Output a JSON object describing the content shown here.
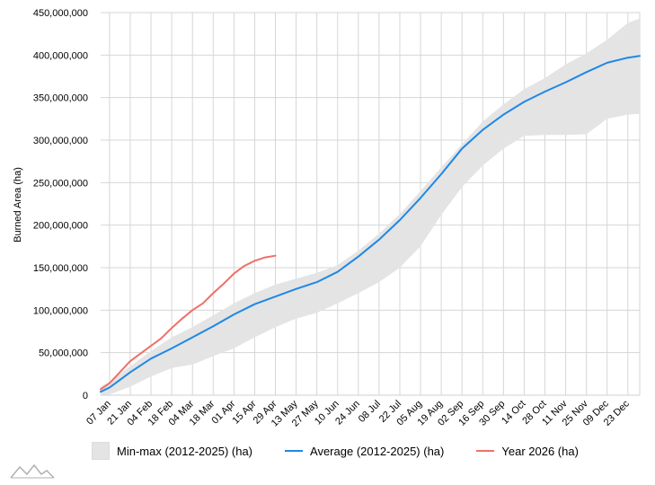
{
  "chart_data": {
    "type": "line",
    "ylabel": "Burned Area (ha)",
    "ylim": [
      0,
      450000000
    ],
    "y_ticks": [
      0,
      50000000,
      100000000,
      150000000,
      200000000,
      250000000,
      300000000,
      350000000,
      400000000,
      450000000
    ],
    "y_tick_labels": [
      "0",
      "50,000,000",
      "100,000,000",
      "150,000,000",
      "200,000,000",
      "250,000,000",
      "300,000,000",
      "350,000,000",
      "400,000,000",
      "450,000,000"
    ],
    "x_tick_labels": [
      "07 Jan",
      "21 Jan",
      "04 Feb",
      "18 Feb",
      "04 Mar",
      "18 Mar",
      "01 Apr",
      "15 Apr",
      "29 Apr",
      "13 May",
      "27 May",
      "10 Jun",
      "24 Jun",
      "08 Jul",
      "22 Jul",
      "05 Aug",
      "19 Aug",
      "02 Sep",
      "16 Sep",
      "30 Sep",
      "14 Oct",
      "28 Oct",
      "11 Nov",
      "25 Nov",
      "09 Dec",
      "23 Dec"
    ],
    "x_start": "01 Jan",
    "x_end": "31 Dec",
    "grid": true,
    "legend_position": "bottom",
    "series": [
      {
        "name": "Min-max (2012-2025) (ha)",
        "kind": "band",
        "color": "#e4e4e4",
        "x": [
          "01 Jan",
          "07 Jan",
          "21 Jan",
          "04 Feb",
          "18 Feb",
          "04 Mar",
          "18 Mar",
          "01 Apr",
          "15 Apr",
          "29 Apr",
          "13 May",
          "27 May",
          "10 Jun",
          "24 Jun",
          "08 Jul",
          "22 Jul",
          "05 Aug",
          "19 Aug",
          "02 Sep",
          "16 Sep",
          "30 Sep",
          "14 Oct",
          "28 Oct",
          "11 Nov",
          "25 Nov",
          "09 Dec",
          "23 Dec",
          "31 Dec"
        ],
        "low": [
          0,
          1000000,
          10000000,
          22000000,
          32000000,
          36000000,
          46000000,
          55000000,
          68000000,
          80000000,
          90000000,
          97000000,
          108000000,
          120000000,
          133000000,
          150000000,
          175000000,
          212000000,
          245000000,
          270000000,
          290000000,
          305000000,
          306000000,
          306000000,
          307000000,
          325000000,
          330000000,
          331000000
        ],
        "high": [
          10000000,
          16000000,
          34000000,
          52000000,
          68000000,
          80000000,
          94000000,
          108000000,
          120000000,
          130000000,
          137000000,
          144000000,
          153000000,
          170000000,
          190000000,
          213000000,
          240000000,
          268000000,
          295000000,
          322000000,
          342000000,
          360000000,
          373000000,
          389000000,
          402000000,
          418000000,
          438000000,
          443000000
        ]
      },
      {
        "name": "Average (2012-2025) (ha)",
        "kind": "line",
        "color": "#1e88e5",
        "x": [
          "01 Jan",
          "07 Jan",
          "21 Jan",
          "04 Feb",
          "18 Feb",
          "04 Mar",
          "18 Mar",
          "01 Apr",
          "15 Apr",
          "29 Apr",
          "13 May",
          "27 May",
          "10 Jun",
          "24 Jun",
          "08 Jul",
          "22 Jul",
          "05 Aug",
          "19 Aug",
          "02 Sep",
          "16 Sep",
          "30 Sep",
          "14 Oct",
          "28 Oct",
          "11 Nov",
          "25 Nov",
          "09 Dec",
          "23 Dec",
          "31 Dec"
        ],
        "values": [
          4000000,
          9000000,
          27000000,
          43000000,
          55000000,
          68000000,
          81000000,
          95000000,
          107000000,
          116000000,
          125000000,
          133000000,
          145000000,
          163000000,
          183000000,
          206000000,
          232000000,
          260000000,
          290000000,
          312000000,
          330000000,
          345000000,
          357000000,
          368000000,
          380000000,
          391000000,
          397000000,
          399000000
        ]
      },
      {
        "name": "Year 2026 (ha)",
        "kind": "line",
        "color": "#ef6f6a",
        "x": [
          "01 Jan",
          "07 Jan",
          "14 Jan",
          "21 Jan",
          "28 Jan",
          "04 Feb",
          "11 Feb",
          "18 Feb",
          "25 Feb",
          "04 Mar",
          "11 Mar",
          "18 Mar",
          "25 Mar",
          "01 Apr",
          "08 Apr",
          "15 Apr",
          "22 Apr",
          "29 Apr"
        ],
        "values": [
          7000000,
          14000000,
          27000000,
          40000000,
          49000000,
          58000000,
          67000000,
          79000000,
          90000000,
          100000000,
          108000000,
          120000000,
          131000000,
          143000000,
          152000000,
          158000000,
          162000000,
          164000000
        ]
      }
    ]
  },
  "legend": {
    "band_label": "Min-max (2012-2025) (ha)",
    "average_label": "Average (2012-2025) (ha)",
    "year_label": "Year 2026 (ha)",
    "average_color": "#1e88e5",
    "year_color": "#ef6f6a"
  },
  "logo_icon": "amcharts-logo-icon"
}
